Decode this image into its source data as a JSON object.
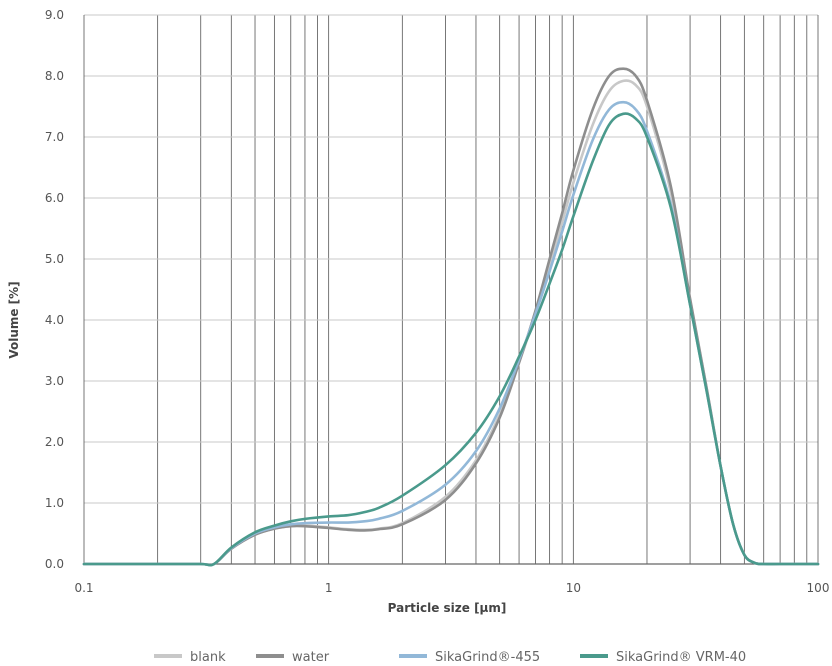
{
  "chart_data": {
    "type": "line",
    "title": "",
    "xlabel": "Particle size [µm]",
    "ylabel": "Volume [%]",
    "x_scale": "log",
    "xlim": [
      0.1,
      100
    ],
    "ylim": [
      0,
      9
    ],
    "x_ticks": [
      {
        "value": 0.1,
        "label": "0.1"
      },
      {
        "value": 1,
        "label": "1"
      },
      {
        "value": 10,
        "label": "10"
      },
      {
        "value": 100,
        "label": "100"
      }
    ],
    "y_ticks": [
      {
        "value": 0,
        "label": "0.0"
      },
      {
        "value": 1,
        "label": "1.0"
      },
      {
        "value": 2,
        "label": "2.0"
      },
      {
        "value": 3,
        "label": "3.0"
      },
      {
        "value": 4,
        "label": "4.0"
      },
      {
        "value": 5,
        "label": "5.0"
      },
      {
        "value": 6,
        "label": "6.0"
      },
      {
        "value": 7,
        "label": "7.0"
      },
      {
        "value": 8,
        "label": "8.0"
      },
      {
        "value": 9,
        "label": "9.0"
      }
    ],
    "grid": "vertical log grid and horizontal major grid",
    "legend_position": "bottom",
    "series": [
      {
        "name": "blank",
        "color": "#c8c8c8",
        "points": [
          [
            0.1,
            0
          ],
          [
            0.2,
            0
          ],
          [
            0.3,
            0
          ],
          [
            0.34,
            0
          ],
          [
            0.4,
            0.25
          ],
          [
            0.5,
            0.48
          ],
          [
            0.6,
            0.58
          ],
          [
            0.7,
            0.62
          ],
          [
            0.8,
            0.63
          ],
          [
            1,
            0.6
          ],
          [
            1.2,
            0.57
          ],
          [
            1.4,
            0.56
          ],
          [
            1.6,
            0.58
          ],
          [
            2,
            0.67
          ],
          [
            3,
            1.1
          ],
          [
            4,
            1.7
          ],
          [
            5,
            2.45
          ],
          [
            6,
            3.3
          ],
          [
            7,
            4.1
          ],
          [
            8,
            4.9
          ],
          [
            9,
            5.6
          ],
          [
            10,
            6.25
          ],
          [
            12,
            7.2
          ],
          [
            14,
            7.75
          ],
          [
            16,
            7.92
          ],
          [
            18,
            7.85
          ],
          [
            20,
            7.5
          ],
          [
            25,
            6.1
          ],
          [
            30,
            4.3
          ],
          [
            35,
            2.9
          ],
          [
            40,
            1.6
          ],
          [
            45,
            0.65
          ],
          [
            50,
            0.15
          ],
          [
            55,
            0.02
          ],
          [
            60,
            0
          ],
          [
            70,
            0
          ],
          [
            100,
            0
          ]
        ]
      },
      {
        "name": "water",
        "color": "#8e8e8e",
        "points": [
          [
            0.1,
            0
          ],
          [
            0.2,
            0
          ],
          [
            0.3,
            0
          ],
          [
            0.34,
            0
          ],
          [
            0.4,
            0.25
          ],
          [
            0.5,
            0.48
          ],
          [
            0.6,
            0.58
          ],
          [
            0.7,
            0.62
          ],
          [
            0.8,
            0.62
          ],
          [
            1,
            0.59
          ],
          [
            1.2,
            0.56
          ],
          [
            1.4,
            0.55
          ],
          [
            1.6,
            0.57
          ],
          [
            2,
            0.65
          ],
          [
            3,
            1.05
          ],
          [
            4,
            1.65
          ],
          [
            5,
            2.4
          ],
          [
            6,
            3.3
          ],
          [
            7,
            4.15
          ],
          [
            8,
            5.0
          ],
          [
            9,
            5.75
          ],
          [
            10,
            6.45
          ],
          [
            12,
            7.45
          ],
          [
            14,
            8.0
          ],
          [
            16,
            8.12
          ],
          [
            18,
            8.0
          ],
          [
            20,
            7.6
          ],
          [
            25,
            6.2
          ],
          [
            30,
            4.35
          ],
          [
            35,
            2.9
          ],
          [
            40,
            1.6
          ],
          [
            45,
            0.65
          ],
          [
            50,
            0.15
          ],
          [
            55,
            0.02
          ],
          [
            60,
            0
          ],
          [
            70,
            0
          ],
          [
            100,
            0
          ]
        ]
      },
      {
        "name": "SikaGrind®-455",
        "color": "#92b8d8",
        "points": [
          [
            0.1,
            0
          ],
          [
            0.2,
            0
          ],
          [
            0.3,
            0
          ],
          [
            0.34,
            0
          ],
          [
            0.4,
            0.26
          ],
          [
            0.5,
            0.5
          ],
          [
            0.6,
            0.6
          ],
          [
            0.7,
            0.65
          ],
          [
            0.8,
            0.67
          ],
          [
            1,
            0.68
          ],
          [
            1.2,
            0.68
          ],
          [
            1.4,
            0.7
          ],
          [
            1.6,
            0.74
          ],
          [
            2,
            0.87
          ],
          [
            3,
            1.3
          ],
          [
            4,
            1.85
          ],
          [
            5,
            2.55
          ],
          [
            6,
            3.35
          ],
          [
            7,
            4.1
          ],
          [
            8,
            4.8
          ],
          [
            9,
            5.45
          ],
          [
            10,
            6.05
          ],
          [
            12,
            6.95
          ],
          [
            14,
            7.45
          ],
          [
            16,
            7.57
          ],
          [
            18,
            7.45
          ],
          [
            20,
            7.1
          ],
          [
            25,
            5.9
          ],
          [
            30,
            4.25
          ],
          [
            35,
            2.85
          ],
          [
            40,
            1.6
          ],
          [
            45,
            0.65
          ],
          [
            50,
            0.15
          ],
          [
            55,
            0.02
          ],
          [
            60,
            0
          ],
          [
            70,
            0
          ],
          [
            100,
            0
          ]
        ]
      },
      {
        "name": "SikaGrind® VRM-40",
        "color": "#4a9a8c",
        "points": [
          [
            0.1,
            0
          ],
          [
            0.2,
            0
          ],
          [
            0.3,
            0
          ],
          [
            0.34,
            0
          ],
          [
            0.4,
            0.27
          ],
          [
            0.5,
            0.52
          ],
          [
            0.6,
            0.63
          ],
          [
            0.7,
            0.7
          ],
          [
            0.8,
            0.74
          ],
          [
            1,
            0.78
          ],
          [
            1.2,
            0.8
          ],
          [
            1.4,
            0.85
          ],
          [
            1.6,
            0.92
          ],
          [
            2,
            1.12
          ],
          [
            3,
            1.62
          ],
          [
            4,
            2.15
          ],
          [
            5,
            2.75
          ],
          [
            6,
            3.4
          ],
          [
            7,
            4.0
          ],
          [
            8,
            4.6
          ],
          [
            9,
            5.15
          ],
          [
            10,
            5.7
          ],
          [
            12,
            6.6
          ],
          [
            14,
            7.2
          ],
          [
            16,
            7.38
          ],
          [
            18,
            7.3
          ],
          [
            20,
            7.0
          ],
          [
            25,
            5.85
          ],
          [
            30,
            4.25
          ],
          [
            35,
            2.85
          ],
          [
            40,
            1.6
          ],
          [
            45,
            0.65
          ],
          [
            50,
            0.15
          ],
          [
            55,
            0.02
          ],
          [
            60,
            0
          ],
          [
            70,
            0
          ],
          [
            100,
            0
          ]
        ]
      }
    ]
  }
}
